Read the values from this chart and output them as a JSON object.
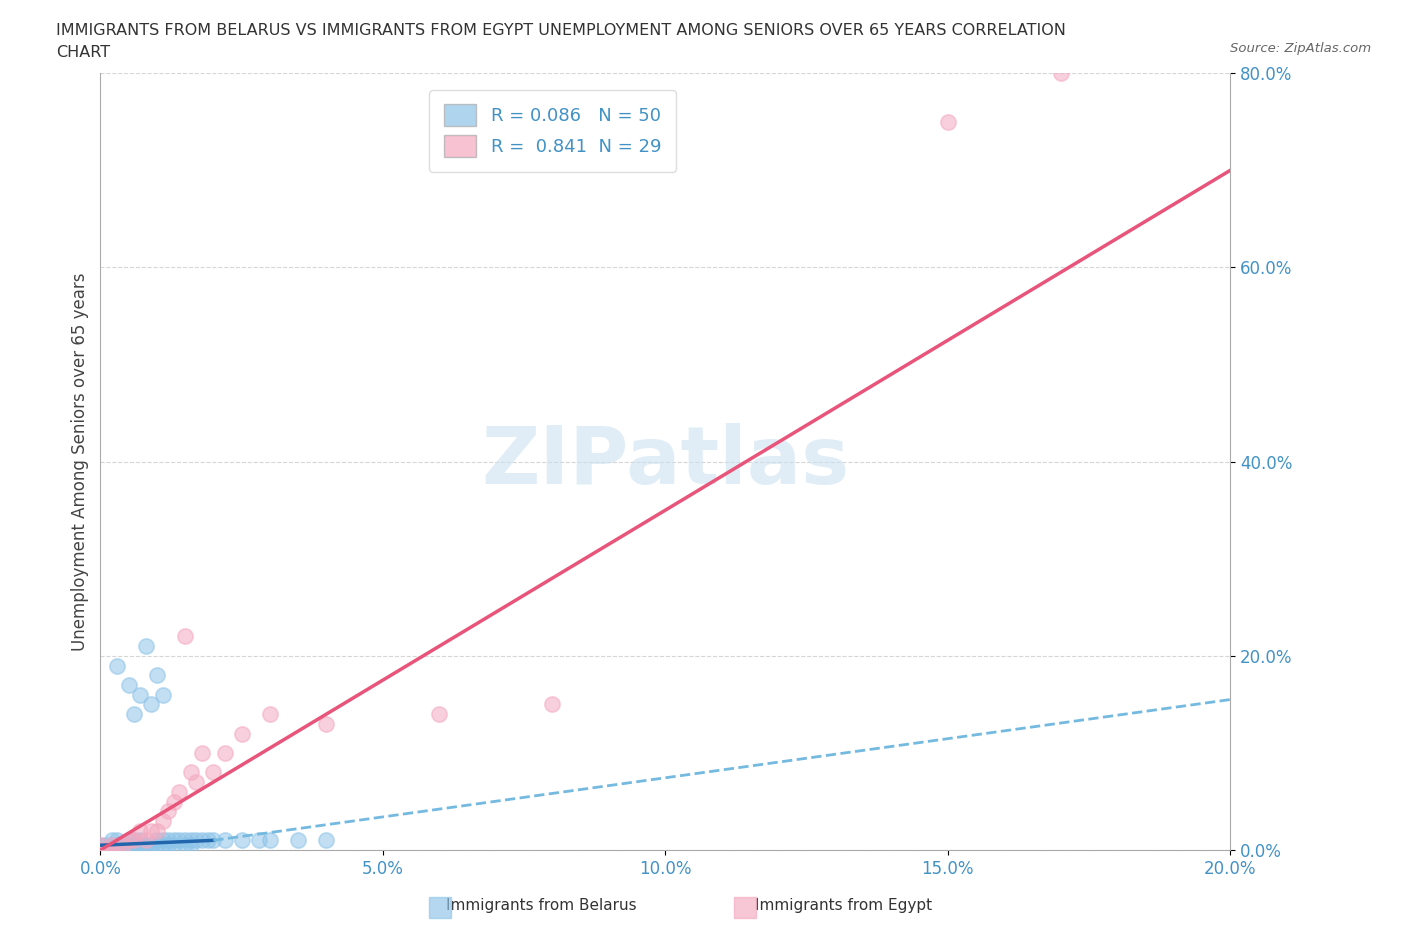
{
  "title_line1": "IMMIGRANTS FROM BELARUS VS IMMIGRANTS FROM EGYPT UNEMPLOYMENT AMONG SENIORS OVER 65 YEARS CORRELATION",
  "title_line2": "CHART",
  "source": "Source: ZipAtlas.com",
  "ylabel": "Unemployment Among Seniors over 65 years",
  "xlim": [
    0.0,
    0.2
  ],
  "ylim": [
    0.0,
    0.8
  ],
  "xticks": [
    0.0,
    0.05,
    0.1,
    0.15,
    0.2
  ],
  "yticks": [
    0.0,
    0.2,
    0.4,
    0.6,
    0.8
  ],
  "xtick_labels": [
    "0.0%",
    "5.0%",
    "10.0%",
    "15.0%",
    "20.0%"
  ],
  "ytick_labels": [
    "0.0%",
    "20.0%",
    "40.0%",
    "60.0%",
    "80.0%"
  ],
  "watermark": "ZIPatlas",
  "legend_label1": "R = 0.086   N = 50",
  "legend_label2": "R =  0.841  N = 29",
  "color_belarus": "#8ec4e8",
  "color_egypt": "#f4a9c0",
  "color_trend_belarus_solid": "#2166ac",
  "color_trend_belarus_dashed": "#74b9e0",
  "color_trend_egypt": "#e8547a",
  "color_tick": "#4292c6",
  "color_grid": "#cccccc",
  "belarus_x": [
    0.0,
    0.0,
    0.0,
    0.001,
    0.001,
    0.001,
    0.002,
    0.002,
    0.002,
    0.003,
    0.003,
    0.003,
    0.004,
    0.004,
    0.005,
    0.005,
    0.005,
    0.006,
    0.006,
    0.006,
    0.007,
    0.007,
    0.007,
    0.008,
    0.008,
    0.009,
    0.009,
    0.01,
    0.01,
    0.011,
    0.011,
    0.012,
    0.012,
    0.013,
    0.013,
    0.014,
    0.015,
    0.015,
    0.016,
    0.016,
    0.017,
    0.018,
    0.019,
    0.02,
    0.022,
    0.025,
    0.028,
    0.03,
    0.035,
    0.04
  ],
  "belarus_y": [
    0.0,
    0.0,
    0.005,
    0.0,
    0.0,
    0.005,
    0.0,
    0.005,
    0.01,
    0.0,
    0.005,
    0.01,
    0.0,
    0.005,
    0.0,
    0.005,
    0.01,
    0.0,
    0.005,
    0.01,
    0.0,
    0.005,
    0.01,
    0.0,
    0.005,
    0.0,
    0.005,
    0.005,
    0.01,
    0.005,
    0.01,
    0.005,
    0.01,
    0.005,
    0.01,
    0.01,
    0.005,
    0.01,
    0.005,
    0.01,
    0.01,
    0.01,
    0.01,
    0.01,
    0.01,
    0.01,
    0.01,
    0.01,
    0.01,
    0.01
  ],
  "belarus_outlier_x": [
    0.003,
    0.005,
    0.006,
    0.007,
    0.008,
    0.009,
    0.01,
    0.011
  ],
  "belarus_outlier_y": [
    0.19,
    0.17,
    0.14,
    0.16,
    0.21,
    0.15,
    0.18,
    0.16
  ],
  "egypt_x": [
    0.0,
    0.0,
    0.001,
    0.002,
    0.003,
    0.004,
    0.005,
    0.006,
    0.007,
    0.008,
    0.009,
    0.01,
    0.011,
    0.012,
    0.013,
    0.014,
    0.015,
    0.016,
    0.017,
    0.018,
    0.02,
    0.022,
    0.025,
    0.03,
    0.04,
    0.06,
    0.08,
    0.15,
    0.17
  ],
  "egypt_y": [
    0.0,
    0.005,
    0.0,
    0.005,
    0.0,
    0.005,
    0.01,
    0.01,
    0.02,
    0.01,
    0.02,
    0.02,
    0.03,
    0.04,
    0.05,
    0.06,
    0.22,
    0.08,
    0.07,
    0.1,
    0.08,
    0.1,
    0.12,
    0.14,
    0.13,
    0.14,
    0.15,
    0.75,
    0.8
  ],
  "trend_belarus_x0": 0.0,
  "trend_belarus_x_break": 0.02,
  "trend_belarus_x1": 0.2,
  "trend_belarus_y0": 0.005,
  "trend_belarus_y_break": 0.01,
  "trend_belarus_y1": 0.155,
  "trend_egypt_x0": 0.0,
  "trend_egypt_x1": 0.2,
  "trend_egypt_y0": 0.0,
  "trend_egypt_y1": 0.7
}
